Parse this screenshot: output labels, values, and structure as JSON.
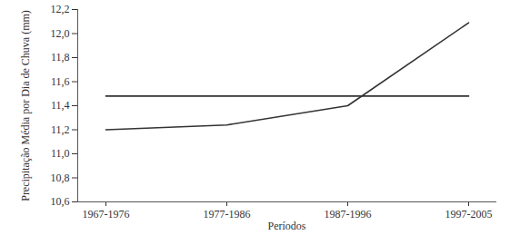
{
  "chart_data": {
    "type": "line",
    "x_label": "Períodos",
    "y_label": "Precipitação Média por Dia de Chuva (mm)",
    "categories": [
      "1967-1976",
      "1977-1986",
      "1987-1996",
      "1997-2005"
    ],
    "series": [
      {
        "color": "#333333",
        "values": [
          11.48,
          11.48,
          11.48,
          11.48
        ]
      },
      {
        "color": "#333333",
        "values": [
          11.2,
          11.24,
          11.4,
          12.09
        ]
      }
    ],
    "ylim": [
      10.6,
      12.2
    ],
    "yticks": [
      {
        "value": 10.6,
        "label": "10,6"
      },
      {
        "value": 10.8,
        "label": "10,8"
      },
      {
        "value": 11.0,
        "label": "11,0"
      },
      {
        "value": 11.2,
        "label": "11,2"
      },
      {
        "value": 11.4,
        "label": "11,4"
      },
      {
        "value": 11.6,
        "label": "11,6"
      },
      {
        "value": 11.8,
        "label": "11,8"
      },
      {
        "value": 12.0,
        "label": "12,0"
      },
      {
        "value": 12.2,
        "label": "12,2"
      }
    ],
    "grid": false
  }
}
